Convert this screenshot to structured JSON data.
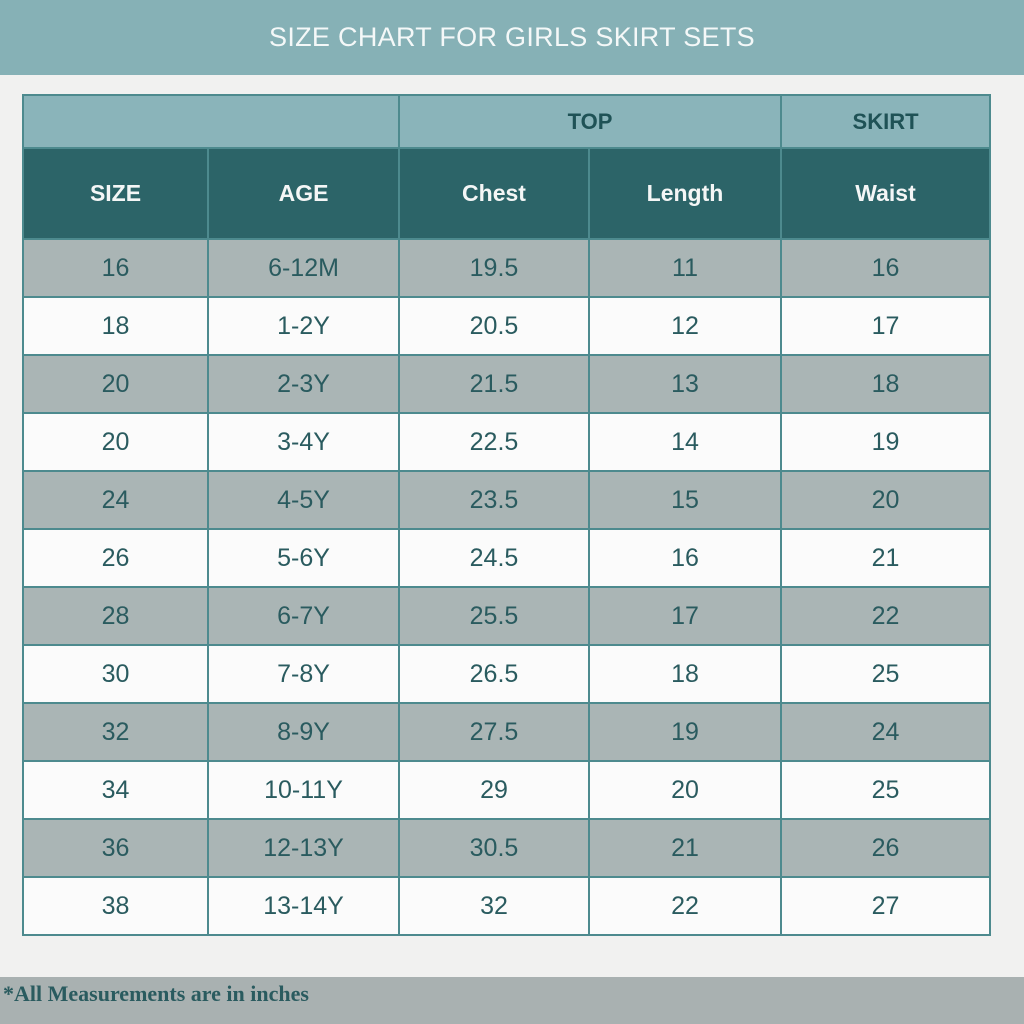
{
  "title": "SIZE CHART FOR GIRLS SKIRT SETS",
  "groups": [
    {
      "label": ""
    },
    {
      "label": "TOP"
    },
    {
      "label": "SKIRT"
    }
  ],
  "columns": [
    "SIZE",
    "AGE",
    "Chest",
    "Length",
    "Waist"
  ],
  "rows": [
    [
      "16",
      "6-12M",
      "19.5",
      "11",
      "16"
    ],
    [
      "18",
      "1-2Y",
      "20.5",
      "12",
      "17"
    ],
    [
      "20",
      "2-3Y",
      "21.5",
      "13",
      "18"
    ],
    [
      "20",
      "3-4Y",
      "22.5",
      "14",
      "19"
    ],
    [
      "24",
      "4-5Y",
      "23.5",
      "15",
      "20"
    ],
    [
      "26",
      "5-6Y",
      "24.5",
      "16",
      "21"
    ],
    [
      "28",
      "6-7Y",
      "25.5",
      "17",
      "22"
    ],
    [
      "30",
      "7-8Y",
      "26.5",
      "18",
      "25"
    ],
    [
      "32",
      "8-9Y",
      "27.5",
      "19",
      "24"
    ],
    [
      "34",
      "10-11Y",
      "29",
      "20",
      "25"
    ],
    [
      "36",
      "12-13Y",
      "30.5",
      "21",
      "26"
    ],
    [
      "38",
      "13-14Y",
      "32",
      "22",
      "27"
    ]
  ],
  "footnote": "*All Measurements are in inches",
  "colors": {
    "title_band": "#86b1b6",
    "group_header": "#8ab4ba",
    "column_header": "#2c6468",
    "shaded_row": "#aab5b5",
    "text": "#2a5b5f"
  }
}
